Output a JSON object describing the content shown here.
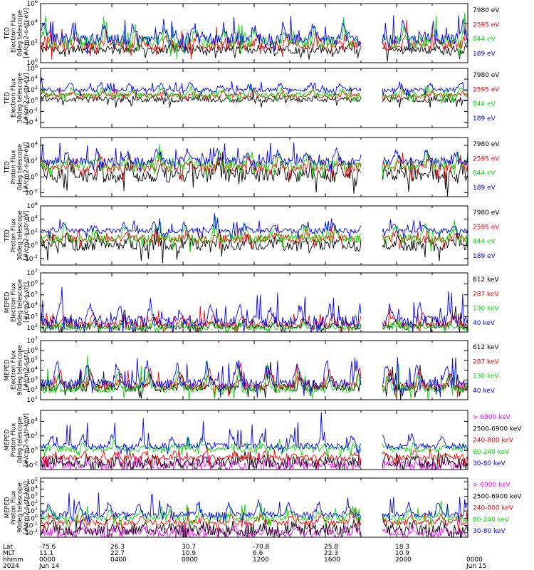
{
  "chart_data": {
    "type": "line",
    "x_range_hours": [
      0,
      24
    ],
    "data_gap_hours": [
      18.05,
      19.15
    ],
    "footer": {
      "row_labels": [
        "Lat",
        "MLT",
        "hhmm",
        "2024"
      ],
      "ticks": [
        {
          "hour": 0,
          "values": [
            "-75.6",
            "11.1",
            "0000",
            "Jun 14"
          ]
        },
        {
          "hour": 4,
          "values": [
            "26.3",
            "22.7",
            "0400",
            ""
          ]
        },
        {
          "hour": 8,
          "values": [
            "30.7",
            "10.9",
            "0800",
            ""
          ]
        },
        {
          "hour": 12,
          "values": [
            "-70.8",
            "6.6",
            "1200",
            ""
          ]
        },
        {
          "hour": 16,
          "values": [
            "25.8",
            "22.3",
            "1600",
            ""
          ]
        },
        {
          "hour": 20,
          "values": [
            "18.3",
            "10.9",
            "2000",
            ""
          ]
        },
        {
          "hour": 24,
          "values": [
            "",
            "",
            "0000",
            "Jun 15"
          ]
        }
      ]
    },
    "panels": [
      {
        "ylabel": [
          "TED",
          "Electron Flux",
          "0deg telescope",
          "[#/cm2-s-str-eV]"
        ],
        "yticks": [
          {
            "e": 0,
            "label": "10^0"
          },
          {
            "e": 2,
            "label": "10^2"
          },
          {
            "e": 4,
            "label": "10^4"
          },
          {
            "e": 6,
            "label": "10^6"
          }
        ],
        "ylog_range": [
          0,
          6
        ],
        "series": [
          {
            "name": "7980 eV",
            "color": "#000000",
            "base": 1.3,
            "amp": 0.3,
            "spike": 1.0,
            "noise": 0.4
          },
          {
            "name": "2595 eV",
            "color": "#ff0000",
            "base": 1.8,
            "amp": 0.8,
            "spike": 1.5,
            "noise": 0.5
          },
          {
            "name": "844 eV",
            "color": "#00dd00",
            "base": 2.1,
            "amp": 1.2,
            "spike": 1.8,
            "noise": 0.6
          },
          {
            "name": "189 eV",
            "color": "#0000ff",
            "base": 2.4,
            "amp": 1.5,
            "spike": 2.4,
            "noise": 0.6
          }
        ]
      },
      {
        "ylabel": [
          "TED",
          "Electron Flux",
          "30deg telescope",
          "[#/cm2-s-str-eV]"
        ],
        "yticks": [
          {
            "e": -4,
            "label": "10^-4"
          },
          {
            "e": -2,
            "label": "10^-2"
          },
          {
            "e": 0,
            "label": "10^0"
          },
          {
            "e": 2,
            "label": "10^2"
          },
          {
            "e": 4,
            "label": "10^4"
          },
          {
            "e": 6,
            "label": "10^6"
          }
        ],
        "ylog_range": [
          -5,
          6
        ],
        "series": [
          {
            "name": "7980 eV",
            "color": "#000000",
            "base": 0.2,
            "amp": 0.3,
            "spike": 1.0,
            "noise": 0.5
          },
          {
            "name": "2595 eV",
            "color": "#ff0000",
            "base": 0.9,
            "amp": 0.8,
            "spike": 1.2,
            "noise": 0.4
          },
          {
            "name": "844 eV",
            "color": "#00dd00",
            "base": 1.0,
            "amp": 1.0,
            "spike": 1.5,
            "noise": 0.5
          },
          {
            "name": "189 eV",
            "color": "#0000ff",
            "base": 2.0,
            "amp": 1.2,
            "spike": 1.6,
            "noise": 0.4
          }
        ]
      },
      {
        "ylabel": [
          "TED",
          "Proton Flux",
          "0deg telescope",
          "[#/cm2-s-str-eV]"
        ],
        "yticks": [
          {
            "e": -2,
            "label": "10^-2"
          },
          {
            "e": 0,
            "label": "10^0"
          },
          {
            "e": 2,
            "label": "10^2"
          },
          {
            "e": 4,
            "label": "10^4"
          }
        ],
        "ylog_range": [
          -2.5,
          5
        ],
        "series": [
          {
            "name": "7980 eV",
            "color": "#000000",
            "base": 0.2,
            "amp": 1.2,
            "spike": 1.5,
            "noise": 0.9
          },
          {
            "name": "2595 eV",
            "color": "#ff0000",
            "base": 1.2,
            "amp": 1.2,
            "spike": 1.5,
            "noise": 0.6
          },
          {
            "name": "844 eV",
            "color": "#00dd00",
            "base": 1.5,
            "amp": 1.0,
            "spike": 1.7,
            "noise": 0.6
          },
          {
            "name": "189 eV",
            "color": "#0000ff",
            "base": 2.0,
            "amp": 1.2,
            "spike": 2.2,
            "noise": 0.5
          }
        ]
      },
      {
        "ylabel": [
          "TED",
          "Proton Flux",
          "30deg telescope",
          "[#/cm2-s-str-eV]"
        ],
        "yticks": [
          {
            "e": -2,
            "label": "10^-2"
          },
          {
            "e": 0,
            "label": "10^0"
          },
          {
            "e": 2,
            "label": "10^2"
          },
          {
            "e": 4,
            "label": "10^4"
          },
          {
            "e": 6,
            "label": "10^6"
          }
        ],
        "ylog_range": [
          -3,
          6
        ],
        "series": [
          {
            "name": "7980 eV",
            "color": "#000000",
            "base": 0.0,
            "amp": 1.2,
            "spike": 1.5,
            "noise": 0.9
          },
          {
            "name": "2595 eV",
            "color": "#ff0000",
            "base": 1.0,
            "amp": 1.0,
            "spike": 1.5,
            "noise": 0.6
          },
          {
            "name": "844 eV",
            "color": "#00dd00",
            "base": 1.0,
            "amp": 1.8,
            "spike": 2.0,
            "noise": 0.7
          },
          {
            "name": "189 eV",
            "color": "#0000ff",
            "base": 2.2,
            "amp": 1.0,
            "spike": 1.8,
            "noise": 0.4
          }
        ]
      },
      {
        "ylabel": [
          "MEPED",
          "Electron Flux",
          "0deg telescope",
          "[#/cm2-s-str]"
        ],
        "yticks": [
          {
            "e": 2,
            "label": "10^2"
          },
          {
            "e": 3,
            "label": "10^3"
          },
          {
            "e": 4,
            "label": "10^4"
          },
          {
            "e": 5,
            "label": "10^5"
          },
          {
            "e": 6,
            "label": "10^6"
          },
          {
            "e": 7,
            "label": "10^7"
          }
        ],
        "ylog_range": [
          1.6,
          7
        ],
        "series": [
          {
            "name": "612 keV",
            "color": "#000000",
            "base": 2.1,
            "amp": 0.6,
            "spike": 1.2,
            "noise": 0.3
          },
          {
            "name": "287 keV",
            "color": "#ff0000",
            "base": 2.3,
            "amp": 0.8,
            "spike": 1.5,
            "noise": 0.3
          },
          {
            "name": "130 keV",
            "color": "#00dd00",
            "base": 2.0,
            "amp": 0.3,
            "spike": 0.8,
            "noise": 0.2
          },
          {
            "name": "40 keV",
            "color": "#0000ff",
            "base": 2.6,
            "amp": 1.2,
            "spike": 2.5,
            "noise": 0.5
          }
        ]
      },
      {
        "ylabel": [
          "MEPED",
          "Electron Flux",
          "90deg telescope",
          "[#/cm2-s-str]"
        ],
        "yticks": [
          {
            "e": 1,
            "label": "10^1"
          },
          {
            "e": 2,
            "label": "10^2"
          },
          {
            "e": 3,
            "label": "10^3"
          },
          {
            "e": 4,
            "label": "10^4"
          },
          {
            "e": 5,
            "label": "10^5"
          },
          {
            "e": 6,
            "label": "10^6"
          },
          {
            "e": 7,
            "label": "10^7"
          }
        ],
        "ylog_range": [
          1,
          7
        ],
        "series": [
          {
            "name": "612 keV",
            "color": "#000000",
            "base": 2.2,
            "amp": 1.2,
            "spike": 1.5,
            "noise": 0.4
          },
          {
            "name": "287 keV",
            "color": "#ff0000",
            "base": 2.4,
            "amp": 1.5,
            "spike": 2.0,
            "noise": 0.4
          },
          {
            "name": "130 keV",
            "color": "#00dd00",
            "base": 2.1,
            "amp": 1.5,
            "spike": 2.2,
            "noise": 0.4
          },
          {
            "name": "40 keV",
            "color": "#0000ff",
            "base": 2.6,
            "amp": 2.0,
            "spike": 2.6,
            "noise": 0.5
          }
        ]
      },
      {
        "ylabel": [
          "MEPED",
          "Proton Flux",
          "0deg telescope",
          "[#/cm2-s-str-keV]"
        ],
        "yticks": [
          {
            "e": -2,
            "label": "10^-2"
          },
          {
            "e": 0,
            "label": "10^0"
          },
          {
            "e": 2,
            "label": "10^2"
          },
          {
            "e": 4,
            "label": "10^4"
          }
        ],
        "ylog_range": [
          -2.6,
          5.5
        ],
        "series": [
          {
            "name": "> 6900 keV",
            "color": "#ff00ff",
            "base": -2.0,
            "amp": 0.5,
            "spike": 1.5,
            "noise": 0.6
          },
          {
            "name": "2500-6900 keV",
            "color": "#000000",
            "base": -1.7,
            "amp": 0.6,
            "spike": 1.0,
            "noise": 0.8
          },
          {
            "name": "240-800 keV",
            "color": "#ff0000",
            "base": -1.0,
            "amp": 0.8,
            "spike": 1.5,
            "noise": 0.4
          },
          {
            "name": "80-240 keV",
            "color": "#00dd00",
            "base": 0.2,
            "amp": 0.6,
            "spike": 1.5,
            "noise": 0.4
          },
          {
            "name": "30-80 keV",
            "color": "#0000ff",
            "base": 0.6,
            "amp": 1.4,
            "spike": 3.2,
            "noise": 0.4
          }
        ]
      },
      {
        "ylabel": [
          "MEPED",
          "Proton Flux",
          "90deg telescope",
          "[#/cm2-s-str-keV]"
        ],
        "yticks": [
          {
            "e": -2,
            "label": "10^-2"
          },
          {
            "e": -1,
            "label": "10^-1"
          },
          {
            "e": 0,
            "label": "10^0"
          },
          {
            "e": 1,
            "label": "10^1"
          },
          {
            "e": 2,
            "label": "10^2"
          },
          {
            "e": 3,
            "label": "10^3"
          },
          {
            "e": 4,
            "label": "10^4"
          },
          {
            "e": 5,
            "label": "10^5"
          }
        ],
        "ylog_range": [
          -2.6,
          5.5
        ],
        "series": [
          {
            "name": "> 6900 keV",
            "color": "#ff00ff",
            "base": -2.0,
            "amp": 0.6,
            "spike": 1.5,
            "noise": 0.6
          },
          {
            "name": "2500-6900 keV",
            "color": "#000000",
            "base": -1.6,
            "amp": 0.8,
            "spike": 1.2,
            "noise": 0.8
          },
          {
            "name": "240-800 keV",
            "color": "#ff0000",
            "base": -0.6,
            "amp": 1.0,
            "spike": 1.8,
            "noise": 0.4
          },
          {
            "name": "80-240 keV",
            "color": "#00dd00",
            "base": 0.0,
            "amp": 1.0,
            "spike": 1.8,
            "noise": 0.4
          },
          {
            "name": "30-80 keV",
            "color": "#0000ff",
            "base": 0.5,
            "amp": 1.6,
            "spike": 3.3,
            "noise": 0.4
          }
        ]
      }
    ]
  }
}
